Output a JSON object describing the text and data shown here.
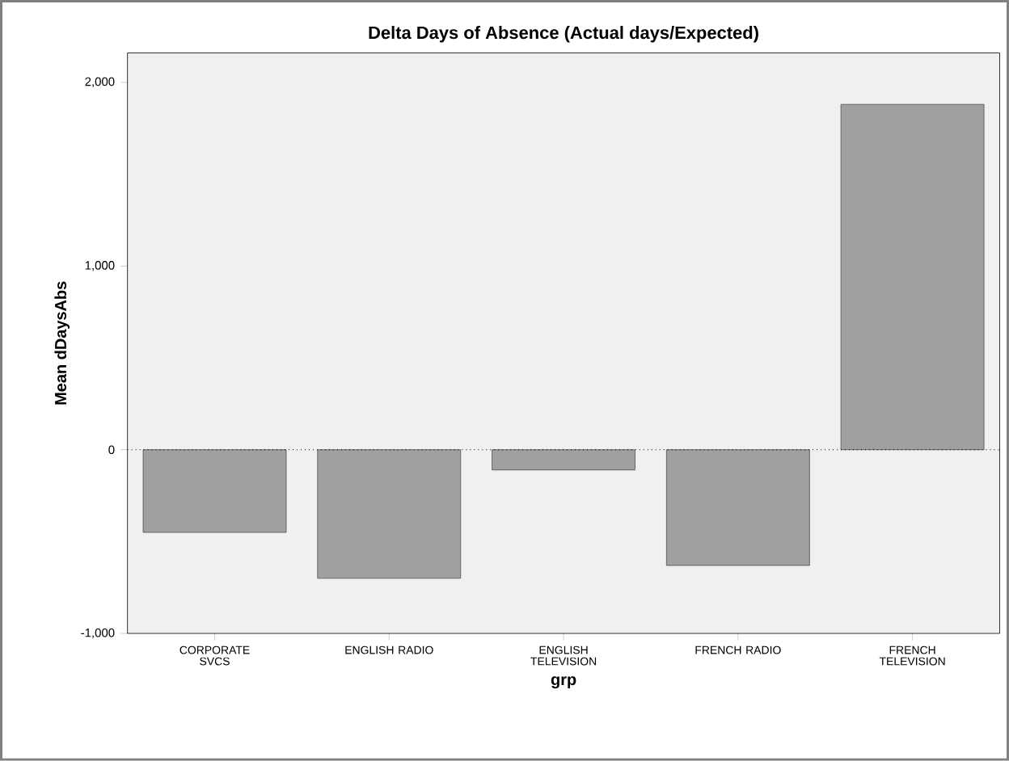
{
  "chart_data": {
    "type": "bar",
    "title": "Delta Days of Absence (Actual days/Expected)",
    "xlabel": "grp",
    "ylabel": "Mean dDaysAbs",
    "categories": [
      "CORPORATE SVCS",
      "ENGLISH RADIO",
      "ENGLISH TELEVISION",
      "FRENCH RADIO",
      "FRENCH TELEVISION"
    ],
    "values": [
      -450,
      -700,
      -110,
      -630,
      1880
    ],
    "color": "#a0a0a0",
    "ylim": [
      -1000,
      2160
    ],
    "yticks": [
      {
        "value": -1000,
        "label": "-1,000"
      },
      {
        "value": 0,
        "label": "0"
      },
      {
        "value": 1000,
        "label": "1,000"
      },
      {
        "value": 2000,
        "label": "2,000"
      }
    ],
    "ref_lines": [
      {
        "axis": "y",
        "value": 0,
        "line_style": "dotted"
      }
    ],
    "grid": false
  }
}
